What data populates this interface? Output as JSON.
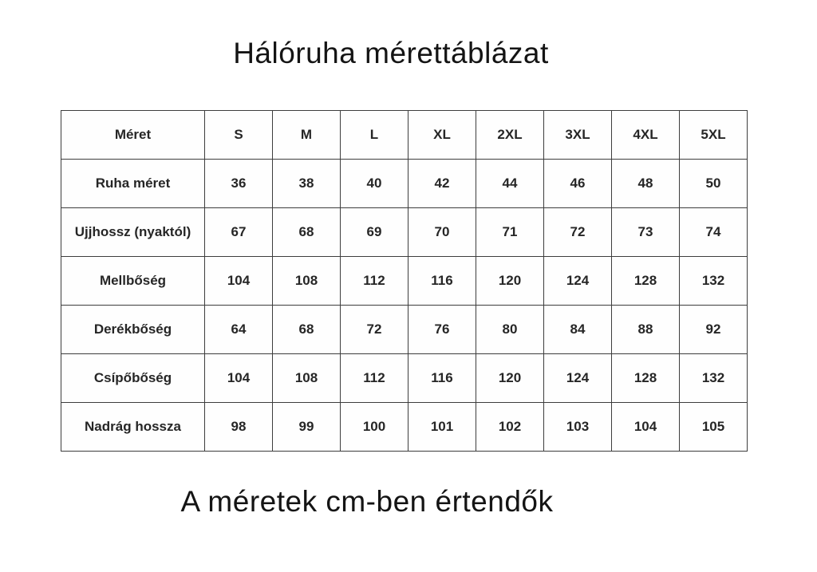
{
  "title": "Hálóruha mérettáblázat",
  "footer": "A méretek cm-ben értendők",
  "table": {
    "header": [
      "Méret",
      "S",
      "M",
      "L",
      "XL",
      "2XL",
      "3XL",
      "4XL",
      "5XL"
    ],
    "rows": [
      {
        "label": "Ruha méret",
        "values": [
          "36",
          "38",
          "40",
          "42",
          "44",
          "46",
          "48",
          "50"
        ]
      },
      {
        "label": "Ujjhossz (nyaktól)",
        "values": [
          "67",
          "68",
          "69",
          "70",
          "71",
          "72",
          "73",
          "74"
        ]
      },
      {
        "label": "Mellbőség",
        "values": [
          "104",
          "108",
          "112",
          "116",
          "120",
          "124",
          "128",
          "132"
        ]
      },
      {
        "label": "Derékbőség",
        "values": [
          "64",
          "68",
          "72",
          "76",
          "80",
          "84",
          "88",
          "92"
        ]
      },
      {
        "label": "Csípőbőség",
        "values": [
          "104",
          "108",
          "112",
          "116",
          "120",
          "124",
          "128",
          "132"
        ]
      },
      {
        "label": "Nadrág hossza",
        "values": [
          "98",
          "99",
          "100",
          "101",
          "102",
          "103",
          "104",
          "105"
        ]
      }
    ]
  }
}
